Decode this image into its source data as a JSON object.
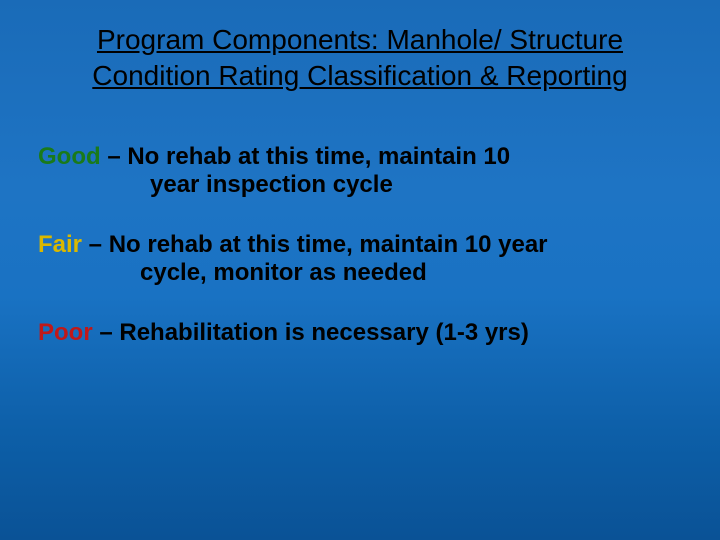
{
  "title": "Program Components:  Manhole/ Structure Condition Rating Classification & Reporting",
  "ratings": {
    "good": {
      "label": "Good",
      "dash": "  –  ",
      "desc_line1": "No rehab at this time, maintain 10",
      "desc_line2": "year inspection cycle",
      "color": "#1a7a1a"
    },
    "fair": {
      "label": "Fair",
      "dash": "  –   ",
      "desc_line1": "No rehab at this time, maintain 10 year",
      "desc_line2": "cycle, monitor as needed",
      "color": "#d9b800"
    },
    "poor": {
      "label": "Poor",
      "dash": "  –  ",
      "desc_line1": "Rehabilitation is necessary (1-3 yrs)",
      "color": "#c01818"
    }
  },
  "background_gradient": {
    "top": "#1a6bb8",
    "mid": "#1972c3",
    "bottom": "#0a5296"
  }
}
